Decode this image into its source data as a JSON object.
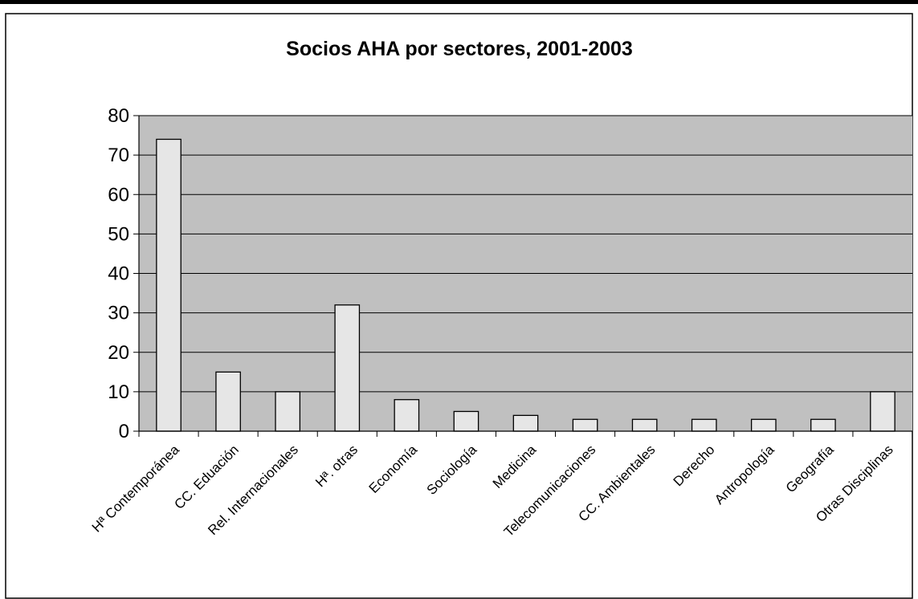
{
  "chart_data": {
    "type": "bar",
    "title": "Socios AHA por sectores, 2001-2003",
    "xlabel": "",
    "ylabel": "",
    "categories": [
      "Hª Contemporánea",
      "CC. Eduación",
      "Rel. Internacionales",
      "Hª. otras",
      "Economía",
      "Sociología",
      "Medicina",
      "Telecomunicaciones",
      "CC. Ambientales",
      "Derecho",
      "Antropología",
      "Geografía",
      "Otras Disciplinas"
    ],
    "values": [
      74,
      15,
      10,
      32,
      8,
      5,
      4,
      3,
      3,
      3,
      3,
      3,
      10
    ],
    "ylim": [
      0,
      80
    ],
    "yticks": [
      0,
      10,
      20,
      30,
      40,
      50,
      60,
      70,
      80
    ],
    "grid": true,
    "legend": "none",
    "colors": {
      "plot_background": "#c0c0c0",
      "bar_fill": "#e6e6e6",
      "bar_stroke": "#000000",
      "gridline": "#000000",
      "frame": "#000000"
    }
  }
}
